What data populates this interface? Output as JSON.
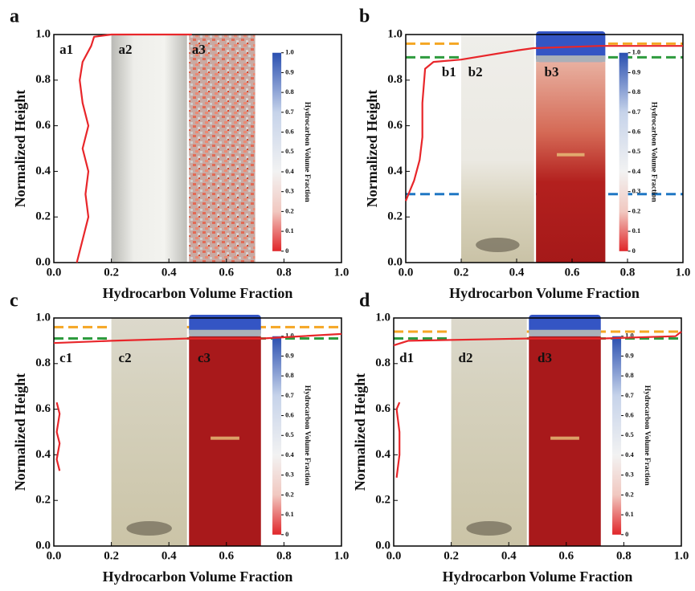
{
  "chart_data": [
    {
      "type": "line",
      "panel_label": "a",
      "sub_labels": [
        "a1",
        "a2",
        "a3"
      ],
      "xlabel": "Hydrocarbon Volume Fraction",
      "ylabel": "Normalized Height",
      "xlim": [
        0,
        1
      ],
      "ylim": [
        0,
        1
      ],
      "xticks": [
        {
          "value": 0,
          "label": "0.0"
        },
        0.2,
        0.4,
        0.6,
        0.8,
        {
          "value": 1,
          "label": "1.0"
        }
      ],
      "yticks": [
        {
          "value": 0,
          "label": "0.0"
        },
        0.2,
        0.4,
        0.6,
        0.8,
        {
          "value": 1,
          "label": "1.0"
        }
      ],
      "x": [
        0.08,
        0.09,
        0.1,
        0.12,
        0.11,
        0.12,
        0.1,
        0.12,
        0.1,
        0.09,
        0.1,
        0.13,
        0.14,
        0.2,
        0.48
      ],
      "series": [
        {
          "color": "#e8262a",
          "values": [
            0,
            0.05,
            0.1,
            0.2,
            0.3,
            0.4,
            0.5,
            0.6,
            0.7,
            0.8,
            0.88,
            0.95,
            0.99,
            1.0,
            1.0
          ]
        }
      ],
      "hlines": [],
      "colorbar": {
        "title": "Hydrocarbon Volume Fraction",
        "ticks": [
          {
            "value": 1,
            "label": "1.0"
          },
          0.9,
          0.8,
          0.7,
          0.6,
          0.5,
          0.4,
          0.3,
          0.2,
          0.1,
          0
        ]
      }
    },
    {
      "type": "line",
      "panel_label": "b",
      "sub_labels": [
        "b1",
        "b2",
        "b3"
      ],
      "xlabel": "Hydrocarbon Volume Fraction",
      "ylabel": "Normalized Height",
      "xlim": [
        0,
        1
      ],
      "ylim": [
        0,
        1
      ],
      "xticks": [
        {
          "value": 0,
          "label": "0.0"
        },
        0.2,
        0.4,
        0.6,
        0.8,
        {
          "value": 1,
          "label": "1.0"
        }
      ],
      "yticks": [
        {
          "value": 0,
          "label": "0.0"
        },
        0.2,
        0.4,
        0.6,
        0.8,
        {
          "value": 1,
          "label": "1.0"
        }
      ],
      "x": [
        0,
        0.01,
        0.03,
        0.05,
        0.06,
        0.06,
        0.07,
        0.1,
        0.2,
        0.4,
        0.46,
        0.7,
        1.0
      ],
      "series": [
        {
          "color": "#e8262a",
          "values": [
            0.27,
            0.3,
            0.36,
            0.45,
            0.55,
            0.7,
            0.85,
            0.88,
            0.89,
            0.93,
            0.94,
            0.95,
            0.95
          ]
        }
      ],
      "hlines": [
        {
          "value": 0.96,
          "color": "#f5a623"
        },
        {
          "value": 0.9,
          "color": "#2e9b3e"
        },
        {
          "value": 0.3,
          "color": "#1f77c4"
        }
      ],
      "colorbar": {
        "title": "Hydrocarbon Volume Fraction",
        "ticks": [
          {
            "value": 1,
            "label": "1.0"
          },
          0.9,
          0.8,
          0.7,
          0.6,
          0.5,
          0.4,
          0.3,
          0.2,
          0.1,
          0
        ]
      }
    },
    {
      "type": "line",
      "panel_label": "c",
      "sub_labels": [
        "c1",
        "c2",
        "c3"
      ],
      "xlabel": "Hydrocarbon Volume Fraction",
      "ylabel": "Normalized Height",
      "xlim": [
        0,
        1
      ],
      "ylim": [
        0,
        1
      ],
      "xticks": [
        {
          "value": 0,
          "label": "0.0"
        },
        0.2,
        0.4,
        0.6,
        0.8,
        {
          "value": 1,
          "label": "1.0"
        }
      ],
      "yticks": [
        {
          "value": 0,
          "label": "0.0"
        },
        0.2,
        0.4,
        0.6,
        0.8,
        {
          "value": 1,
          "label": "1.0"
        }
      ],
      "x": [
        0.02,
        0.01,
        0.02,
        0.01,
        0.02,
        0.01,
        0.01,
        0,
        0.2,
        0.46,
        0.72,
        1.0
      ],
      "series": [
        {
          "color": "#e8262a",
          "values": [
            0.33,
            0.38,
            0.45,
            0.5,
            0.58,
            0.63,
            null,
            0.89,
            0.9,
            0.91,
            0.91,
            0.93
          ]
        }
      ],
      "hlines": [
        {
          "value": 0.96,
          "color": "#f5a623"
        },
        {
          "value": 0.91,
          "color": "#2e9b3e"
        }
      ],
      "colorbar": {
        "title": "Hydrocarbon Volume Fraction",
        "ticks": [
          {
            "value": 1,
            "label": "1.0"
          },
          0.9,
          0.8,
          0.7,
          0.6,
          0.5,
          0.4,
          0.3,
          0.2,
          0.1,
          0
        ]
      }
    },
    {
      "type": "line",
      "panel_label": "d",
      "sub_labels": [
        "d1",
        "d2",
        "d3"
      ],
      "xlabel": "Hydrocarbon Volume Fraction",
      "ylabel": "Normalized Height",
      "xlim": [
        0,
        1
      ],
      "ylim": [
        0,
        1
      ],
      "xticks": [
        {
          "value": 0,
          "label": "0.0"
        },
        0.2,
        0.4,
        0.6,
        0.8,
        {
          "value": 1,
          "label": "1.0"
        }
      ],
      "yticks": [
        {
          "value": 0,
          "label": "0.0"
        },
        0.2,
        0.4,
        0.6,
        0.8,
        {
          "value": 1,
          "label": "1.0"
        }
      ],
      "x": [
        0.01,
        0.02,
        0.02,
        0.01,
        0.02,
        0.01,
        0,
        0.05,
        0.46,
        0.72,
        0.98,
        1.0
      ],
      "series": [
        {
          "color": "#e8262a",
          "values": [
            0.3,
            0.4,
            0.5,
            0.6,
            0.63,
            null,
            0.88,
            0.9,
            0.91,
            0.91,
            0.92,
            0.94
          ]
        }
      ],
      "hlines": [
        {
          "value": 0.94,
          "color": "#f5a623"
        },
        {
          "value": 0.91,
          "color": "#2e9b3e"
        }
      ],
      "colorbar": {
        "title": "Hydrocarbon Volume Fraction",
        "ticks": [
          {
            "value": 1,
            "label": "1.0"
          },
          0.9,
          0.8,
          0.7,
          0.6,
          0.5,
          0.4,
          0.3,
          0.2,
          0.1,
          0
        ]
      }
    }
  ]
}
